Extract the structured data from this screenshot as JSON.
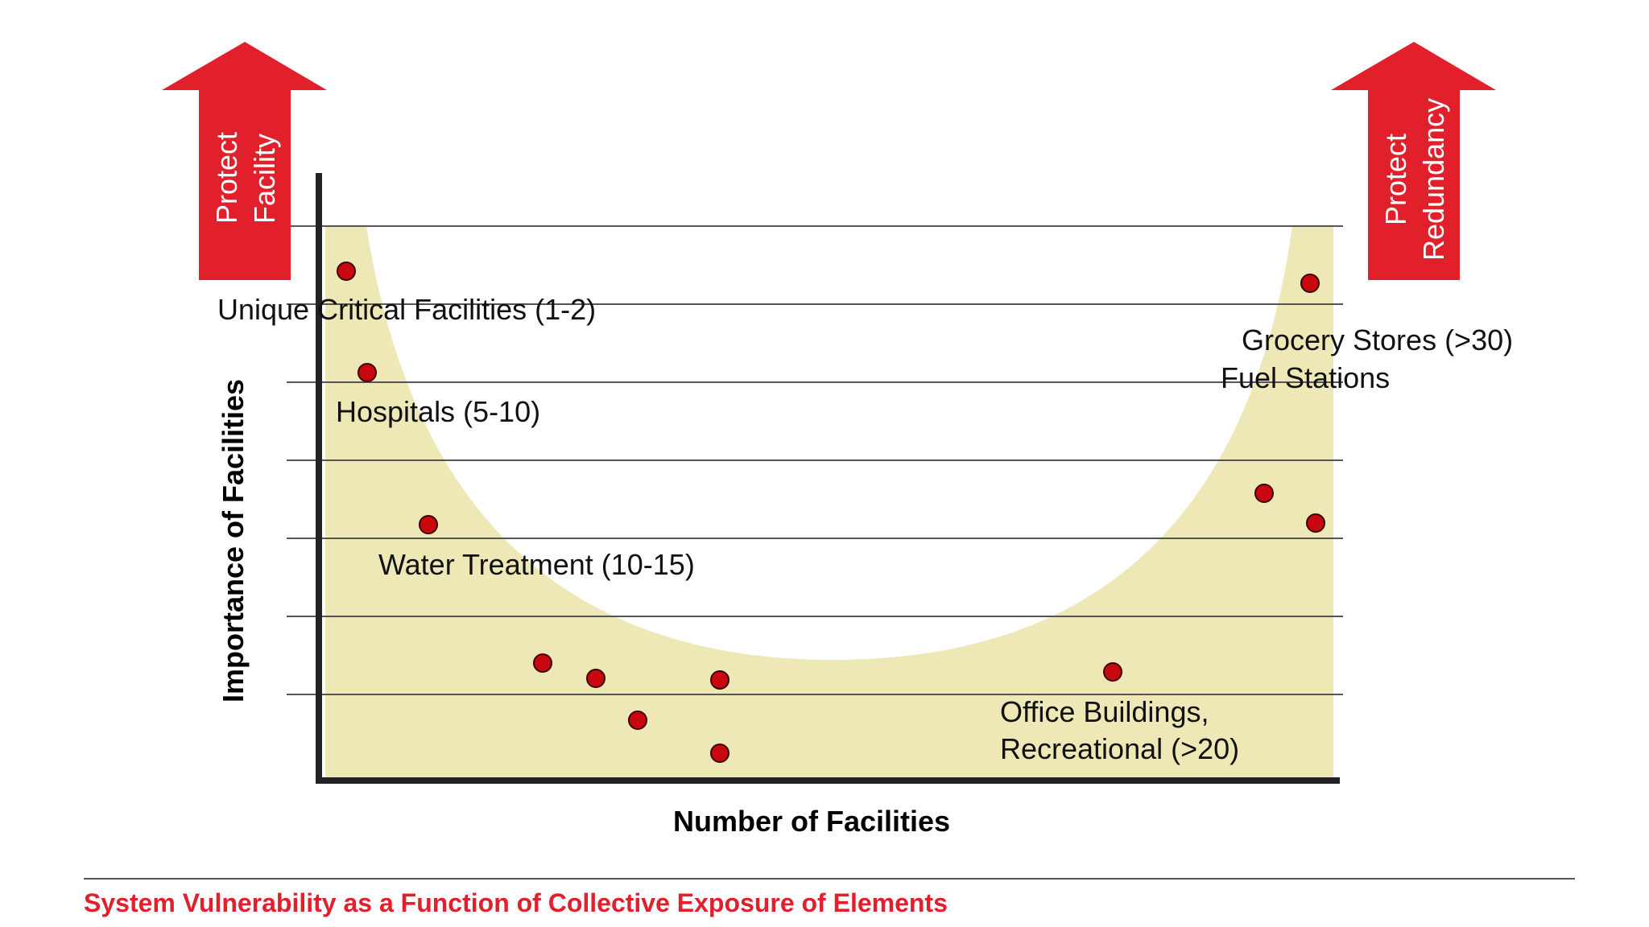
{
  "diagram": {
    "y_axis_label": "Importance of Facilities",
    "x_axis_label": "Number of Facilities",
    "left_arrow": {
      "lines": [
        "Protect",
        "Facility"
      ]
    },
    "right_arrow": {
      "lines": [
        "Protect",
        "Redundancy"
      ]
    },
    "category_labels": [
      "Unique Critical Facilities (1-2)",
      "Hospitals (5-10)",
      "Water Treatment (10-15)",
      "Office Buildings,",
      "Recreational (>20)",
      "Grocery Stores (>30)",
      "Fuel Stations"
    ],
    "caption": "System Vulnerability as a Function of Collective Exposure of Elements"
  },
  "colors": {
    "accent_red": "#e2202c",
    "band_fill": "#ede8b6",
    "dot_fill": "#c8070f",
    "axis": "#222222",
    "gridline": "#555555"
  }
}
